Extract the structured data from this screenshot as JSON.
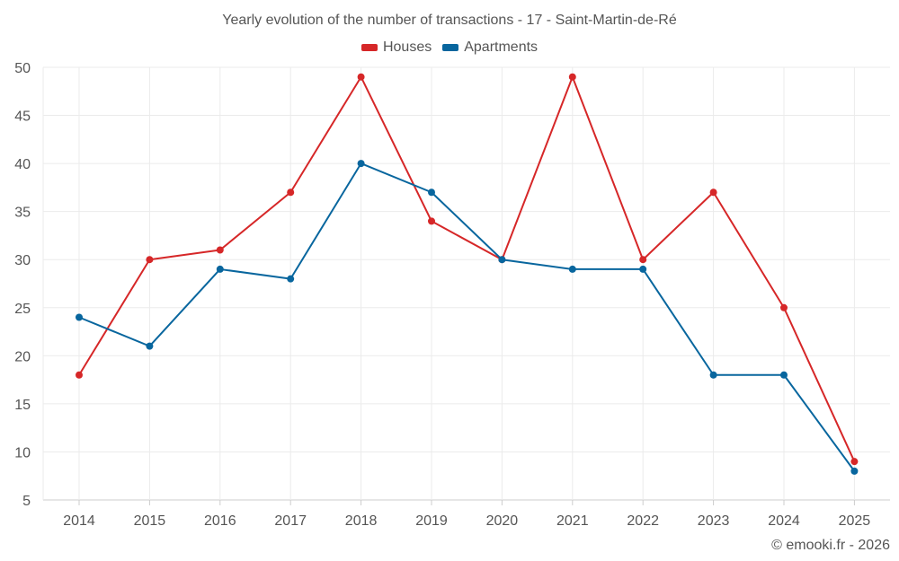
{
  "chart_data": {
    "type": "line",
    "title": "Yearly evolution of the number of transactions - 17 - Saint-Martin-de-Ré",
    "categories": [
      "2014",
      "2015",
      "2016",
      "2017",
      "2018",
      "2019",
      "2020",
      "2021",
      "2022",
      "2023",
      "2024",
      "2025"
    ],
    "series": [
      {
        "name": "Houses",
        "color": "#d62728",
        "values": [
          18,
          30,
          31,
          37,
          49,
          34,
          30,
          49,
          30,
          37,
          25,
          9
        ]
      },
      {
        "name": "Apartments",
        "color": "#08669e",
        "values": [
          24,
          21,
          29,
          28,
          40,
          37,
          30,
          29,
          29,
          18,
          18,
          8
        ]
      }
    ],
    "ylim": [
      5,
      50
    ],
    "yticks": [
      5,
      10,
      15,
      20,
      25,
      30,
      35,
      40,
      45,
      50
    ],
    "xlabel": "",
    "ylabel": "",
    "grid": true,
    "legend": "top-center"
  },
  "footer": "© emooki.fr - 2026"
}
